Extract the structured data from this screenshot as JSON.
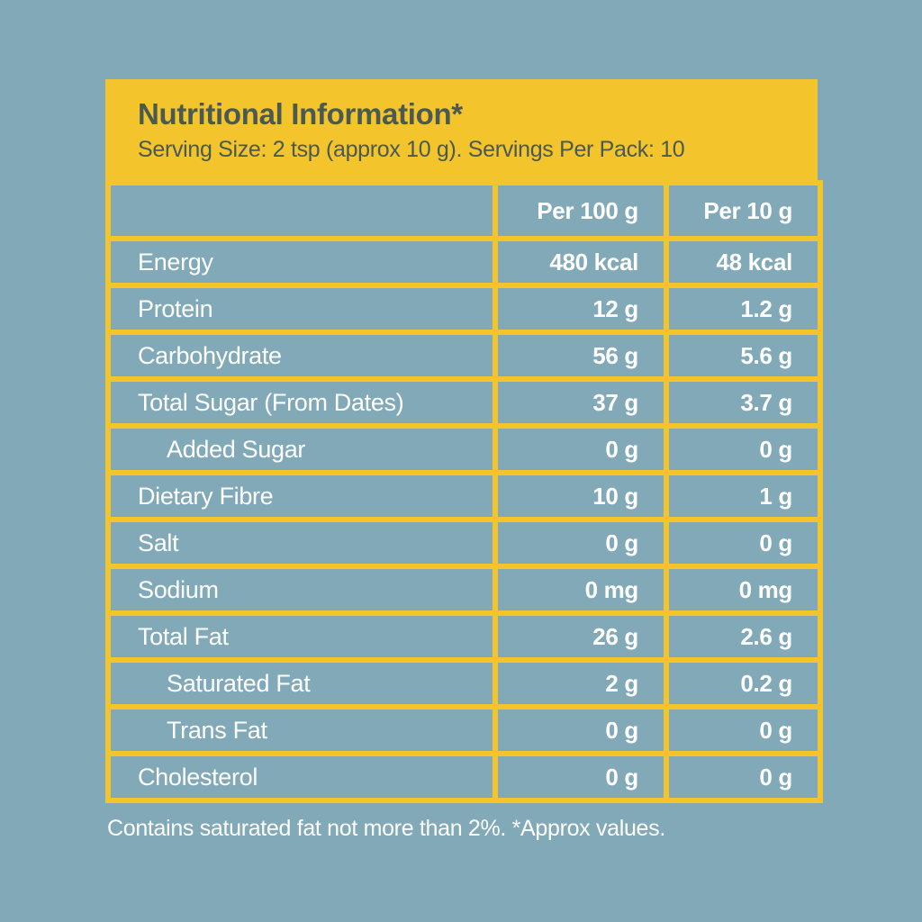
{
  "colors": {
    "background": "#82a9b8",
    "accent_yellow": "#f3c42c",
    "header_text": "#4a5a52",
    "table_text": "#ffffff"
  },
  "header": {
    "title": "Nutritional Information*",
    "subtitle": "Serving Size: 2 tsp (approx 10 g). Servings Per Pack: 10"
  },
  "table": {
    "columns": [
      "",
      "Per 100 g",
      "Per 10 g"
    ],
    "rows": [
      {
        "label": "Energy",
        "per100": "480 kcal",
        "per10": "48 kcal",
        "indent": false
      },
      {
        "label": "Protein",
        "per100": "12 g",
        "per10": "1.2 g",
        "indent": false
      },
      {
        "label": "Carbohydrate",
        "per100": "56 g",
        "per10": "5.6 g",
        "indent": false
      },
      {
        "label": "Total Sugar (From Dates)",
        "per100": "37 g",
        "per10": "3.7 g",
        "indent": false
      },
      {
        "label": "Added Sugar",
        "per100": "0 g",
        "per10": "0 g",
        "indent": true
      },
      {
        "label": "Dietary Fibre",
        "per100": "10 g",
        "per10": "1 g",
        "indent": false
      },
      {
        "label": "Salt",
        "per100": "0 g",
        "per10": "0 g",
        "indent": false
      },
      {
        "label": "Sodium",
        "per100": "0 mg",
        "per10": "0 mg",
        "indent": false
      },
      {
        "label": "Total Fat",
        "per100": "26 g",
        "per10": "2.6 g",
        "indent": false
      },
      {
        "label": "Saturated Fat",
        "per100": "2 g",
        "per10": "0.2 g",
        "indent": true
      },
      {
        "label": "Trans Fat",
        "per100": "0 g",
        "per10": "0 g",
        "indent": true
      },
      {
        "label": "Cholesterol",
        "per100": "0 g",
        "per10": "0 g",
        "indent": false
      }
    ]
  },
  "footnote": "Contains saturated fat not more than 2%. *Approx values."
}
